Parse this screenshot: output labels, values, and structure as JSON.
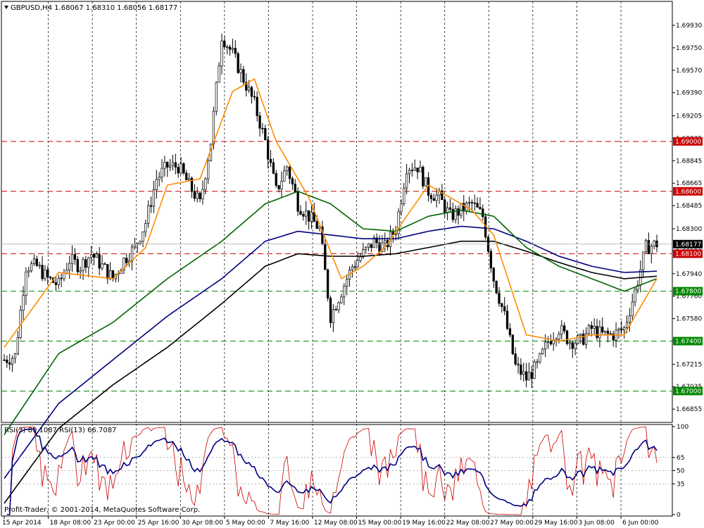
{
  "window": {
    "symbol_header": "GBPUSD,H4  1.68067 1.68310 1.68056 1.68177",
    "rsi_header": "RSI(3) 80.1087  RSI(13) 66.7087",
    "copyright": "Profit-Trader, © 2001-2014, MetaQuotes Software Corp."
  },
  "price_axis": {
    "ticks": [
      "1.69930",
      "1.69750",
      "1.69570",
      "1.69390",
      "1.69205",
      "1.69025",
      "1.68845",
      "1.68665",
      "1.68485",
      "1.68300",
      "1.68120",
      "1.67940",
      "1.67760",
      "1.67580",
      "1.67400",
      "1.67215",
      "1.67035",
      "1.66855"
    ],
    "current_label": "1.68177",
    "levels": [
      {
        "price": 1.69,
        "label": "1.69000",
        "color": "#cc0000",
        "style": "red"
      },
      {
        "price": 1.686,
        "label": "1.68600",
        "color": "#cc0000",
        "style": "red"
      },
      {
        "price": 1.681,
        "label": "1.68100",
        "color": "#cc0000",
        "style": "red"
      },
      {
        "price": 1.678,
        "label": "1.67800",
        "color": "#008800",
        "style": "green"
      },
      {
        "price": 1.674,
        "label": "1.67400",
        "color": "#008800",
        "style": "green"
      },
      {
        "price": 1.67,
        "label": "1.67000",
        "color": "#008800",
        "style": "green"
      }
    ]
  },
  "rsi_axis": {
    "ticks": [
      "100",
      "65",
      "50",
      "35",
      "0"
    ]
  },
  "time_axis": {
    "labels": [
      "15 Apr 2014",
      "18 Apr 08:00",
      "23 Apr 00:00",
      "25 Apr 16:00",
      "30 Apr 08:00",
      "5 May 00:00",
      "7 May 16:00",
      "12 May 08:00",
      "15 May 00:00",
      "19 May 16:00",
      "22 May 08:00",
      "27 May 00:00",
      "29 May 16:00",
      "3 Jun 08:00",
      "6 Jun 00:00"
    ]
  },
  "colors": {
    "candle": "#000000",
    "ma_fast": "#ff8c00",
    "ma_mid": "#006400",
    "ma_slow_blue": "#000080",
    "ma_slow_black": "#000000",
    "rsi_fast": "#cc0000",
    "rsi_slow": "#000080",
    "grid": "#000000"
  },
  "chart_data": {
    "type": "candlestick",
    "symbol": "GBPUSD",
    "timeframe": "H4",
    "last_close": 1.68177,
    "ylim": [
      1.6676,
      1.7002
    ],
    "close_path": [
      [
        0,
        1.6725
      ],
      [
        4,
        1.6728
      ],
      [
        8,
        1.68
      ],
      [
        12,
        1.68
      ],
      [
        16,
        1.679
      ],
      [
        20,
        1.6785
      ],
      [
        24,
        1.6805
      ],
      [
        28,
        1.68
      ],
      [
        32,
        1.681
      ],
      [
        36,
        1.68
      ],
      [
        40,
        1.679
      ],
      [
        44,
        1.6805
      ],
      [
        48,
        1.6815
      ],
      [
        52,
        1.6835
      ],
      [
        56,
        1.687
      ],
      [
        60,
        1.688
      ],
      [
        64,
        1.688
      ],
      [
        68,
        1.6865
      ],
      [
        72,
        1.685
      ],
      [
        76,
        1.69
      ],
      [
        80,
        1.6985
      ],
      [
        84,
        1.697
      ],
      [
        88,
        1.695
      ],
      [
        92,
        1.693
      ],
      [
        96,
        1.69
      ],
      [
        100,
        1.686
      ],
      [
        104,
        1.688
      ],
      [
        108,
        1.685
      ],
      [
        112,
        1.684
      ],
      [
        116,
        1.683
      ],
      [
        120,
        1.676
      ],
      [
        124,
        1.678
      ],
      [
        128,
        1.68
      ],
      [
        132,
        1.681
      ],
      [
        136,
        1.682
      ],
      [
        140,
        1.6815
      ],
      [
        144,
        1.683
      ],
      [
        148,
        1.688
      ],
      [
        152,
        1.688
      ],
      [
        156,
        1.686
      ],
      [
        160,
        1.6855
      ],
      [
        164,
        1.684
      ],
      [
        168,
        1.6845
      ],
      [
        172,
        1.685
      ],
      [
        176,
        1.684
      ],
      [
        180,
        1.679
      ],
      [
        184,
        1.676
      ],
      [
        188,
        1.672
      ],
      [
        192,
        1.671
      ],
      [
        196,
        1.672
      ],
      [
        200,
        1.674
      ],
      [
        204,
        1.675
      ],
      [
        208,
        1.674
      ],
      [
        212,
        1.674
      ],
      [
        216,
        1.675
      ],
      [
        220,
        1.6745
      ],
      [
        224,
        1.6745
      ],
      [
        228,
        1.675
      ],
      [
        232,
        1.678
      ],
      [
        236,
        1.6815
      ],
      [
        240,
        1.6818
      ]
    ],
    "ma_fast": [
      [
        0,
        1.6735
      ],
      [
        20,
        1.6795
      ],
      [
        40,
        1.679
      ],
      [
        52,
        1.6815
      ],
      [
        60,
        1.6865
      ],
      [
        72,
        1.687
      ],
      [
        84,
        1.694
      ],
      [
        92,
        1.695
      ],
      [
        100,
        1.69
      ],
      [
        112,
        1.6855
      ],
      [
        124,
        1.679
      ],
      [
        132,
        1.68
      ],
      [
        140,
        1.6815
      ],
      [
        148,
        1.684
      ],
      [
        156,
        1.6865
      ],
      [
        164,
        1.6855
      ],
      [
        172,
        1.6845
      ],
      [
        180,
        1.6825
      ],
      [
        192,
        1.6745
      ],
      [
        204,
        1.674
      ],
      [
        216,
        1.6745
      ],
      [
        228,
        1.6745
      ],
      [
        240,
        1.679
      ]
    ],
    "ma_mid": [
      [
        0,
        1.6665
      ],
      [
        20,
        1.673
      ],
      [
        40,
        1.6755
      ],
      [
        60,
        1.679
      ],
      [
        80,
        1.682
      ],
      [
        96,
        1.685
      ],
      [
        108,
        1.686
      ],
      [
        120,
        1.685
      ],
      [
        132,
        1.683
      ],
      [
        144,
        1.6828
      ],
      [
        156,
        1.684
      ],
      [
        168,
        1.6845
      ],
      [
        180,
        1.684
      ],
      [
        192,
        1.6815
      ],
      [
        204,
        1.68
      ],
      [
        216,
        1.679
      ],
      [
        228,
        1.678
      ],
      [
        240,
        1.679
      ]
    ],
    "ma_blue": [
      [
        0,
        1.663
      ],
      [
        20,
        1.669
      ],
      [
        40,
        1.6725
      ],
      [
        60,
        1.676
      ],
      [
        80,
        1.679
      ],
      [
        96,
        1.682
      ],
      [
        108,
        1.6828
      ],
      [
        120,
        1.6825
      ],
      [
        132,
        1.6822
      ],
      [
        144,
        1.6822
      ],
      [
        156,
        1.6828
      ],
      [
        168,
        1.6832
      ],
      [
        180,
        1.683
      ],
      [
        192,
        1.682
      ],
      [
        204,
        1.6808
      ],
      [
        216,
        1.68
      ],
      [
        228,
        1.6795
      ],
      [
        240,
        1.6796
      ]
    ],
    "ma_black": [
      [
        0,
        1.661
      ],
      [
        20,
        1.667
      ],
      [
        40,
        1.6705
      ],
      [
        60,
        1.6735
      ],
      [
        80,
        1.677
      ],
      [
        96,
        1.68
      ],
      [
        108,
        1.681
      ],
      [
        120,
        1.6808
      ],
      [
        132,
        1.6808
      ],
      [
        144,
        1.681
      ],
      [
        156,
        1.6815
      ],
      [
        168,
        1.682
      ],
      [
        180,
        1.682
      ],
      [
        192,
        1.6812
      ],
      [
        204,
        1.6803
      ],
      [
        216,
        1.6795
      ],
      [
        228,
        1.679
      ],
      [
        240,
        1.6792
      ]
    ],
    "rsi3_last": 80.1087,
    "rsi13_last": 66.7087,
    "rsi_levels": [
      35,
      50,
      65
    ]
  }
}
